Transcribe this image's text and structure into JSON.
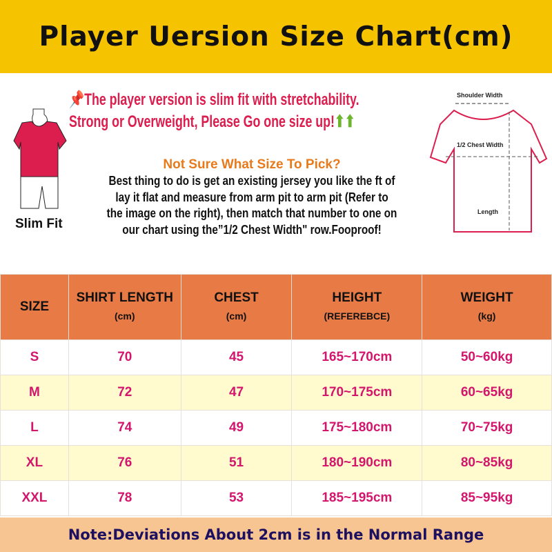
{
  "title": "Player Uersion Size Chart(cm)",
  "notice": {
    "line1": "The player version is slim fit with stretchability.",
    "line2": "Strong or Overweight, Please Go one size up!",
    "pin_icon": "pushpin-icon",
    "arrow_icon": "up-arrows-icon"
  },
  "guide": {
    "heading": "Not Sure What Size To Pick?",
    "lines": [
      "Best thing to do is get an existing jersey you like the ft of",
      "lay it flat and measure from arm pit to arm pit (Refer to",
      "the image on the right), then match that number to one on",
      "our chart using the”1/2 Chest Width\" row.Fooproof!"
    ]
  },
  "figure": {
    "label": "Slim Fit"
  },
  "diagram": {
    "shoulder": "Shoulder Width",
    "chest": "1/2 Chest Width",
    "length": "Length"
  },
  "table": {
    "headers": [
      {
        "t": "SIZE",
        "s": ""
      },
      {
        "t": "SHIRT LENGTH",
        "s": "(cm)"
      },
      {
        "t": "CHEST",
        "s": "(cm)"
      },
      {
        "t": "HEIGHT",
        "s": "(REFEREBCE)"
      },
      {
        "t": "WEIGHT",
        "s": "(kg)"
      }
    ],
    "rows": [
      [
        "S",
        "70",
        "45",
        "165~170cm",
        "50~60kg"
      ],
      [
        "M",
        "72",
        "47",
        "170~175cm",
        "60~65kg"
      ],
      [
        "L",
        "74",
        "49",
        "175~180cm",
        "70~75kg"
      ],
      [
        "XL",
        "76",
        "51",
        "180~190cm",
        "80~85kg"
      ],
      [
        "XXL",
        "78",
        "53",
        "185~195cm",
        "85~95kg"
      ]
    ]
  },
  "note": "Note:Deviations About 2cm is in the Normal Range",
  "colors": {
    "header": "#f6c300",
    "table_header": "#e87a45",
    "value": "#d3156c",
    "alt_row": "#fffbcf",
    "footer": "#f6c591",
    "note_text": "#1e1060"
  }
}
